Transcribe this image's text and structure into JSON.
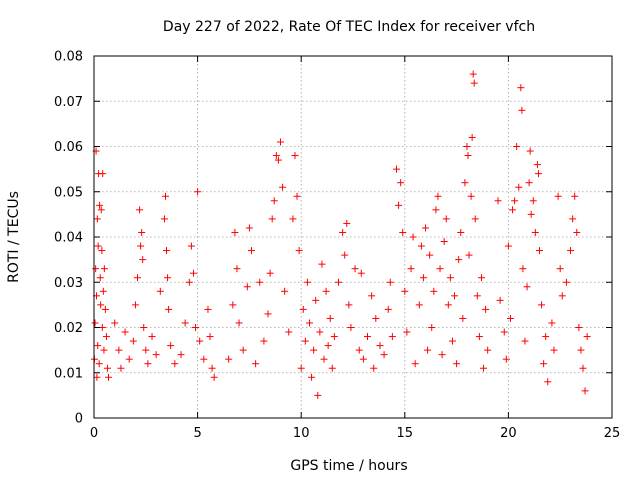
{
  "chart_data": {
    "type": "scatter",
    "title": "Day 227 of 2022, Rate Of TEC Index for receiver vfch",
    "xlabel": "GPS time / hours",
    "ylabel": "ROTI / TECUs",
    "xlim": [
      0,
      25
    ],
    "ylim": [
      0,
      0.08
    ],
    "x_ticks": [
      0,
      5,
      10,
      15,
      20,
      25
    ],
    "y_ticks": [
      0,
      0.01,
      0.02,
      0.03,
      0.04,
      0.05,
      0.06,
      0.07,
      0.08
    ],
    "x_tick_labels": [
      "0",
      "5",
      "10",
      "15",
      "20",
      "25"
    ],
    "y_tick_labels": [
      "0",
      "0.01",
      "0.02",
      "0.03",
      "0.04",
      "0.05",
      "0.06",
      "0.07",
      "0.08"
    ],
    "grid": true,
    "marker": "plus",
    "color": "#ff0000",
    "series": [
      {
        "values": [
          [
            0.02,
            0.013
          ],
          [
            0.05,
            0.021
          ],
          [
            0.08,
            0.033
          ],
          [
            0.1,
            0.059
          ],
          [
            0.12,
            0.027
          ],
          [
            0.14,
            0.009
          ],
          [
            0.16,
            0.044
          ],
          [
            0.18,
            0.016
          ],
          [
            0.2,
            0.038
          ],
          [
            0.22,
            0.054
          ],
          [
            0.25,
            0.012
          ],
          [
            0.27,
            0.047
          ],
          [
            0.3,
            0.031
          ],
          [
            0.32,
            0.025
          ],
          [
            0.35,
            0.046
          ],
          [
            0.38,
            0.037
          ],
          [
            0.4,
            0.02
          ],
          [
            0.42,
            0.054
          ],
          [
            0.45,
            0.028
          ],
          [
            0.48,
            0.015
          ],
          [
            0.5,
            0.033
          ],
          [
            0.55,
            0.024
          ],
          [
            0.6,
            0.018
          ],
          [
            0.65,
            0.011
          ],
          [
            0.7,
            0.009
          ],
          [
            1.0,
            0.021
          ],
          [
            1.2,
            0.015
          ],
          [
            1.3,
            0.011
          ],
          [
            1.5,
            0.019
          ],
          [
            1.7,
            0.013
          ],
          [
            1.9,
            0.017
          ],
          [
            2.0,
            0.025
          ],
          [
            2.1,
            0.031
          ],
          [
            2.2,
            0.046
          ],
          [
            2.25,
            0.038
          ],
          [
            2.3,
            0.041
          ],
          [
            2.35,
            0.035
          ],
          [
            2.4,
            0.02
          ],
          [
            2.5,
            0.015
          ],
          [
            2.6,
            0.012
          ],
          [
            2.8,
            0.018
          ],
          [
            3.0,
            0.014
          ],
          [
            3.2,
            0.028
          ],
          [
            3.4,
            0.044
          ],
          [
            3.45,
            0.049
          ],
          [
            3.5,
            0.037
          ],
          [
            3.55,
            0.031
          ],
          [
            3.6,
            0.024
          ],
          [
            3.7,
            0.016
          ],
          [
            3.9,
            0.012
          ],
          [
            4.2,
            0.014
          ],
          [
            4.4,
            0.021
          ],
          [
            4.6,
            0.03
          ],
          [
            4.7,
            0.038
          ],
          [
            4.8,
            0.032
          ],
          [
            4.9,
            0.02
          ],
          [
            5.0,
            0.05
          ],
          [
            5.1,
            0.017
          ],
          [
            5.3,
            0.013
          ],
          [
            5.5,
            0.024
          ],
          [
            5.6,
            0.018
          ],
          [
            5.7,
            0.011
          ],
          [
            5.8,
            0.009
          ],
          [
            6.5,
            0.013
          ],
          [
            6.7,
            0.025
          ],
          [
            6.8,
            0.041
          ],
          [
            6.9,
            0.033
          ],
          [
            7.0,
            0.021
          ],
          [
            7.2,
            0.015
          ],
          [
            7.4,
            0.029
          ],
          [
            7.5,
            0.042
          ],
          [
            7.6,
            0.037
          ],
          [
            7.8,
            0.012
          ],
          [
            8.0,
            0.03
          ],
          [
            8.2,
            0.017
          ],
          [
            8.4,
            0.023
          ],
          [
            8.5,
            0.032
          ],
          [
            8.6,
            0.044
          ],
          [
            8.7,
            0.048
          ],
          [
            8.8,
            0.058
          ],
          [
            8.9,
            0.057
          ],
          [
            9.0,
            0.061
          ],
          [
            9.1,
            0.051
          ],
          [
            9.2,
            0.028
          ],
          [
            9.4,
            0.019
          ],
          [
            9.6,
            0.044
          ],
          [
            9.7,
            0.058
          ],
          [
            9.8,
            0.049
          ],
          [
            9.9,
            0.037
          ],
          [
            10.0,
            0.011
          ],
          [
            10.1,
            0.024
          ],
          [
            10.2,
            0.017
          ],
          [
            10.3,
            0.03
          ],
          [
            10.4,
            0.021
          ],
          [
            10.5,
            0.009
          ],
          [
            10.6,
            0.015
          ],
          [
            10.7,
            0.026
          ],
          [
            10.8,
            0.005
          ],
          [
            10.9,
            0.019
          ],
          [
            11.0,
            0.034
          ],
          [
            11.1,
            0.013
          ],
          [
            11.2,
            0.028
          ],
          [
            11.3,
            0.016
          ],
          [
            11.4,
            0.022
          ],
          [
            11.5,
            0.011
          ],
          [
            11.6,
            0.018
          ],
          [
            11.8,
            0.03
          ],
          [
            12.0,
            0.041
          ],
          [
            12.1,
            0.036
          ],
          [
            12.2,
            0.043
          ],
          [
            12.3,
            0.025
          ],
          [
            12.4,
            0.02
          ],
          [
            12.6,
            0.033
          ],
          [
            12.8,
            0.015
          ],
          [
            12.9,
            0.032
          ],
          [
            13.0,
            0.013
          ],
          [
            13.2,
            0.018
          ],
          [
            13.4,
            0.027
          ],
          [
            13.5,
            0.011
          ],
          [
            13.6,
            0.022
          ],
          [
            13.8,
            0.016
          ],
          [
            14.0,
            0.014
          ],
          [
            14.2,
            0.024
          ],
          [
            14.3,
            0.03
          ],
          [
            14.4,
            0.018
          ],
          [
            14.6,
            0.055
          ],
          [
            14.7,
            0.047
          ],
          [
            14.8,
            0.052
          ],
          [
            14.9,
            0.041
          ],
          [
            15.0,
            0.028
          ],
          [
            15.1,
            0.019
          ],
          [
            15.3,
            0.033
          ],
          [
            15.4,
            0.04
          ],
          [
            15.5,
            0.012
          ],
          [
            15.7,
            0.025
          ],
          [
            15.8,
            0.038
          ],
          [
            15.9,
            0.031
          ],
          [
            16.0,
            0.042
          ],
          [
            16.1,
            0.015
          ],
          [
            16.2,
            0.036
          ],
          [
            16.3,
            0.02
          ],
          [
            16.4,
            0.028
          ],
          [
            16.5,
            0.046
          ],
          [
            16.6,
            0.049
          ],
          [
            16.7,
            0.033
          ],
          [
            16.8,
            0.014
          ],
          [
            16.9,
            0.039
          ],
          [
            17.0,
            0.044
          ],
          [
            17.1,
            0.025
          ],
          [
            17.2,
            0.031
          ],
          [
            17.3,
            0.017
          ],
          [
            17.4,
            0.027
          ],
          [
            17.5,
            0.012
          ],
          [
            17.6,
            0.035
          ],
          [
            17.7,
            0.041
          ],
          [
            17.8,
            0.022
          ],
          [
            17.9,
            0.052
          ],
          [
            18.0,
            0.06
          ],
          [
            18.05,
            0.058
          ],
          [
            18.1,
            0.036
          ],
          [
            18.2,
            0.049
          ],
          [
            18.25,
            0.062
          ],
          [
            18.3,
            0.076
          ],
          [
            18.35,
            0.074
          ],
          [
            18.4,
            0.044
          ],
          [
            18.5,
            0.027
          ],
          [
            18.6,
            0.018
          ],
          [
            18.7,
            0.031
          ],
          [
            18.8,
            0.011
          ],
          [
            18.9,
            0.024
          ],
          [
            19.0,
            0.015
          ],
          [
            19.5,
            0.048
          ],
          [
            19.6,
            0.026
          ],
          [
            19.8,
            0.019
          ],
          [
            19.9,
            0.013
          ],
          [
            20.0,
            0.038
          ],
          [
            20.1,
            0.022
          ],
          [
            20.2,
            0.046
          ],
          [
            20.3,
            0.048
          ],
          [
            20.4,
            0.06
          ],
          [
            20.5,
            0.051
          ],
          [
            20.6,
            0.073
          ],
          [
            20.65,
            0.068
          ],
          [
            20.7,
            0.033
          ],
          [
            20.8,
            0.017
          ],
          [
            20.9,
            0.029
          ],
          [
            21.0,
            0.052
          ],
          [
            21.05,
            0.059
          ],
          [
            21.1,
            0.045
          ],
          [
            21.2,
            0.048
          ],
          [
            21.3,
            0.041
          ],
          [
            21.4,
            0.056
          ],
          [
            21.45,
            0.054
          ],
          [
            21.5,
            0.037
          ],
          [
            21.6,
            0.025
          ],
          [
            21.7,
            0.012
          ],
          [
            21.8,
            0.018
          ],
          [
            21.9,
            0.008
          ],
          [
            22.1,
            0.021
          ],
          [
            22.2,
            0.015
          ],
          [
            22.4,
            0.049
          ],
          [
            22.5,
            0.033
          ],
          [
            22.6,
            0.027
          ],
          [
            22.8,
            0.03
          ],
          [
            23.0,
            0.037
          ],
          [
            23.1,
            0.044
          ],
          [
            23.2,
            0.049
          ],
          [
            23.3,
            0.041
          ],
          [
            23.4,
            0.02
          ],
          [
            23.5,
            0.015
          ],
          [
            23.6,
            0.011
          ],
          [
            23.7,
            0.006
          ],
          [
            23.8,
            0.018
          ]
        ]
      }
    ]
  }
}
